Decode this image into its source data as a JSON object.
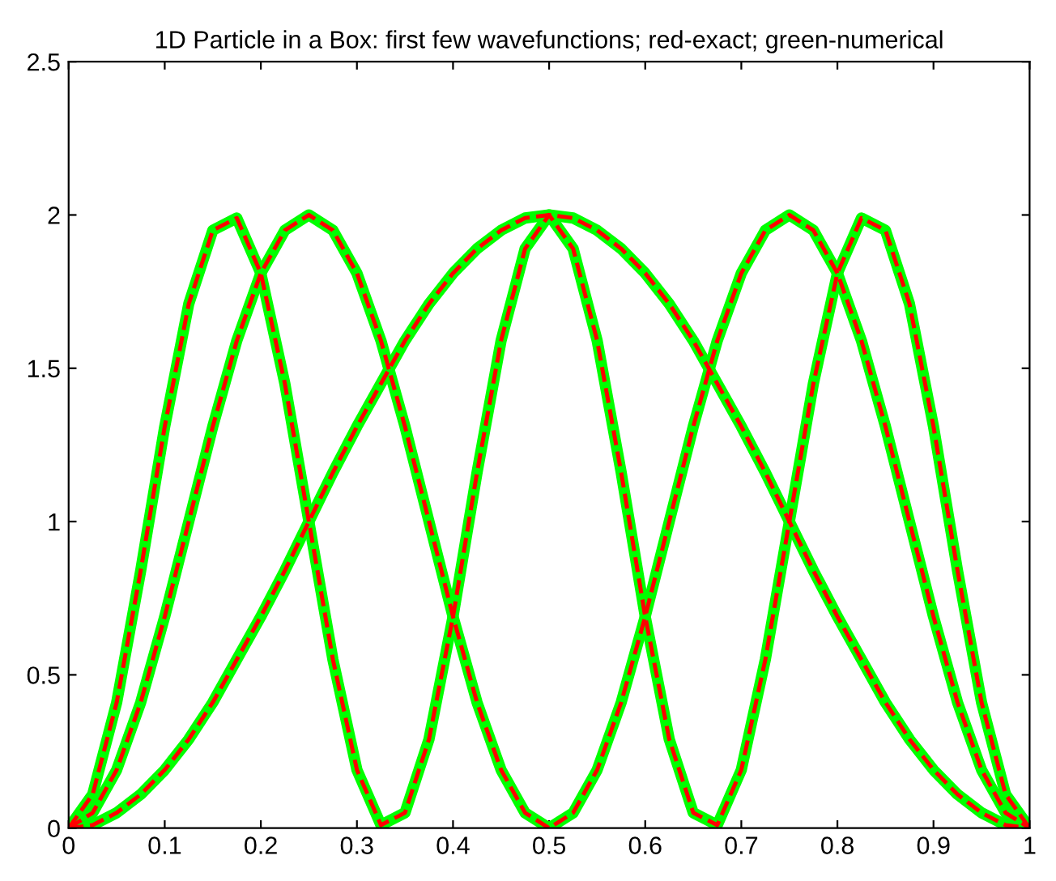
{
  "chart_data": {
    "type": "line",
    "title": "1D Particle in a Box: first few wavefunctions; red-exact; green-numerical",
    "x": [
      0,
      0.025,
      0.05,
      0.075,
      0.1,
      0.125,
      0.15,
      0.175,
      0.2,
      0.225,
      0.25,
      0.275,
      0.3,
      0.325,
      0.35,
      0.375,
      0.4,
      0.425,
      0.45,
      0.475,
      0.5,
      0.525,
      0.55,
      0.575,
      0.6,
      0.625,
      0.65,
      0.675,
      0.7,
      0.725,
      0.75,
      0.775,
      0.8,
      0.825,
      0.85,
      0.875,
      0.9,
      0.925,
      0.95,
      0.975,
      1
    ],
    "series": [
      {
        "color": "#00ff00",
        "line_style": "solid",
        "values": [
          0,
          0.01,
          0.05,
          0.11,
          0.19,
          0.29,
          0.41,
          0.55,
          0.69,
          0.84,
          1,
          1.16,
          1.31,
          1.45,
          1.59,
          1.71,
          1.81,
          1.89,
          1.95,
          1.99,
          2,
          1.99,
          1.95,
          1.89,
          1.81,
          1.71,
          1.59,
          1.45,
          1.31,
          1.16,
          1,
          0.84,
          0.69,
          0.55,
          0.41,
          0.29,
          0.19,
          0.11,
          0.05,
          0.01,
          0
        ]
      },
      {
        "color": "#00ff00",
        "line_style": "solid",
        "values": [
          0,
          0.05,
          0.19,
          0.41,
          0.69,
          1,
          1.31,
          1.59,
          1.81,
          1.95,
          2,
          1.95,
          1.81,
          1.59,
          1.31,
          1,
          0.69,
          0.41,
          0.19,
          0.05,
          0,
          0.05,
          0.19,
          0.41,
          0.69,
          1,
          1.31,
          1.59,
          1.81,
          1.95,
          2,
          1.95,
          1.81,
          1.59,
          1.31,
          1,
          0.69,
          0.41,
          0.19,
          0.05,
          0
        ]
      },
      {
        "color": "#00ff00",
        "line_style": "solid",
        "values": [
          0,
          0.11,
          0.41,
          0.84,
          1.31,
          1.71,
          1.95,
          1.99,
          1.81,
          1.45,
          1,
          0.55,
          0.19,
          0.01,
          0.05,
          0.29,
          0.69,
          1.16,
          1.59,
          1.89,
          2,
          1.89,
          1.59,
          1.16,
          0.69,
          0.29,
          0.05,
          0.01,
          0.19,
          0.55,
          1,
          1.45,
          1.81,
          1.99,
          1.95,
          1.71,
          1.31,
          0.84,
          0.41,
          0.11,
          0
        ]
      },
      {
        "color": "#ff0000",
        "line_style": "dashed",
        "values": [
          0,
          0.01,
          0.05,
          0.11,
          0.19,
          0.29,
          0.41,
          0.55,
          0.69,
          0.84,
          1,
          1.16,
          1.31,
          1.45,
          1.59,
          1.71,
          1.81,
          1.89,
          1.95,
          1.99,
          2,
          1.99,
          1.95,
          1.89,
          1.81,
          1.71,
          1.59,
          1.45,
          1.31,
          1.16,
          1,
          0.84,
          0.69,
          0.55,
          0.41,
          0.29,
          0.19,
          0.11,
          0.05,
          0.01,
          0
        ]
      },
      {
        "color": "#ff0000",
        "line_style": "dashed",
        "values": [
          0,
          0.05,
          0.19,
          0.41,
          0.69,
          1,
          1.31,
          1.59,
          1.81,
          1.95,
          2,
          1.95,
          1.81,
          1.59,
          1.31,
          1,
          0.69,
          0.41,
          0.19,
          0.05,
          0,
          0.05,
          0.19,
          0.41,
          0.69,
          1,
          1.31,
          1.59,
          1.81,
          1.95,
          2,
          1.95,
          1.81,
          1.59,
          1.31,
          1,
          0.69,
          0.41,
          0.19,
          0.05,
          0
        ]
      },
      {
        "color": "#ff0000",
        "line_style": "dashed",
        "values": [
          0,
          0.11,
          0.41,
          0.84,
          1.31,
          1.71,
          1.95,
          1.99,
          1.81,
          1.45,
          1,
          0.55,
          0.19,
          0.01,
          0.05,
          0.29,
          0.69,
          1.16,
          1.59,
          1.89,
          2,
          1.89,
          1.59,
          1.16,
          0.69,
          0.29,
          0.05,
          0.01,
          0.19,
          0.55,
          1,
          1.45,
          1.81,
          1.99,
          1.95,
          1.71,
          1.31,
          0.84,
          0.41,
          0.11,
          0
        ]
      }
    ],
    "xlim": [
      0,
      1
    ],
    "xticks": [
      0,
      0.1,
      0.2,
      0.3,
      0.4,
      0.5,
      0.6,
      0.7,
      0.8,
      0.9,
      1
    ],
    "ylim": [
      0,
      2.5
    ],
    "yticks": [
      0,
      0.5,
      1,
      1.5,
      2,
      2.5
    ]
  }
}
